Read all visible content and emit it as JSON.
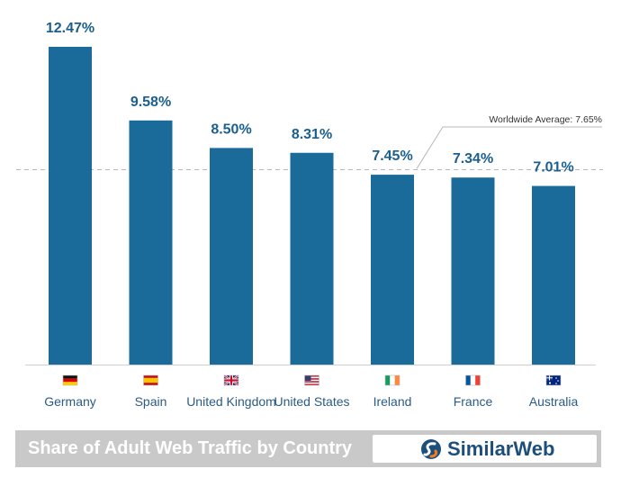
{
  "chart_data": {
    "type": "bar",
    "title": "Share of Adult Web Traffic by Country",
    "categories": [
      "Germany",
      "Spain",
      "United Kingdom",
      "United States",
      "Ireland",
      "France",
      "Australia"
    ],
    "values": [
      12.47,
      9.58,
      8.5,
      8.31,
      7.45,
      7.34,
      7.01
    ],
    "value_labels": [
      "12.47%",
      "9.58%",
      "8.50%",
      "8.31%",
      "7.45%",
      "7.34%",
      "7.01%"
    ],
    "flags": [
      "flag-germany",
      "flag-spain",
      "flag-united-kingdom",
      "flag-united-states",
      "flag-ireland",
      "flag-france",
      "flag-australia"
    ],
    "reference_line": {
      "value": 7.65,
      "label": "Worldwide Average: 7.65%"
    },
    "ylim": [
      0,
      12.47
    ],
    "xlabel": "",
    "ylabel": "",
    "colors": {
      "bar": "#1a6b9a",
      "value_label": "#1b5f8f",
      "category_label": "#2b5a86"
    }
  },
  "footer": {
    "title": "Share of Adult Web Traffic by Country",
    "brand": "SimilarWeb",
    "brand_icon": "similarweb-logo-icon",
    "colors": {
      "bar": "#c9c9c9",
      "brand_text": "#1d4f7c",
      "brand_icon_blue": "#1d4f7c",
      "brand_icon_orange": "#f47b20"
    }
  }
}
